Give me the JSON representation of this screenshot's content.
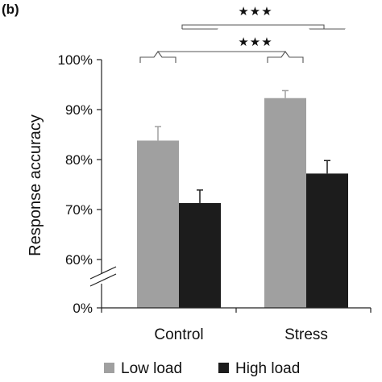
{
  "chart_data": {
    "type": "bar",
    "panel_label": "(b)",
    "categories": [
      "Control",
      "Stress"
    ],
    "series": [
      {
        "name": "Low load",
        "values": [
          83.8,
          92.3
        ],
        "errors": [
          2.8,
          1.5
        ],
        "color": "#a0a0a0"
      },
      {
        "name": "High load",
        "values": [
          71.3,
          77.2
        ],
        "errors": [
          2.6,
          2.6
        ],
        "color": "#1c1c1c"
      }
    ],
    "ylabel": "Response accuracy",
    "ylim": [
      60,
      100
    ],
    "yticks": [
      60,
      70,
      80,
      90,
      100
    ],
    "ytick_labels": [
      "60%",
      "70%",
      "80%",
      "90%",
      "100%"
    ],
    "y_break_label": "0%",
    "axis_break": true,
    "grid": false,
    "legend_position": "bottom",
    "significance": [
      {
        "comparison": "Low load: Control vs Stress",
        "label": "★★★"
      },
      {
        "comparison": "High load: Control vs Stress",
        "label": "★★★"
      }
    ]
  }
}
